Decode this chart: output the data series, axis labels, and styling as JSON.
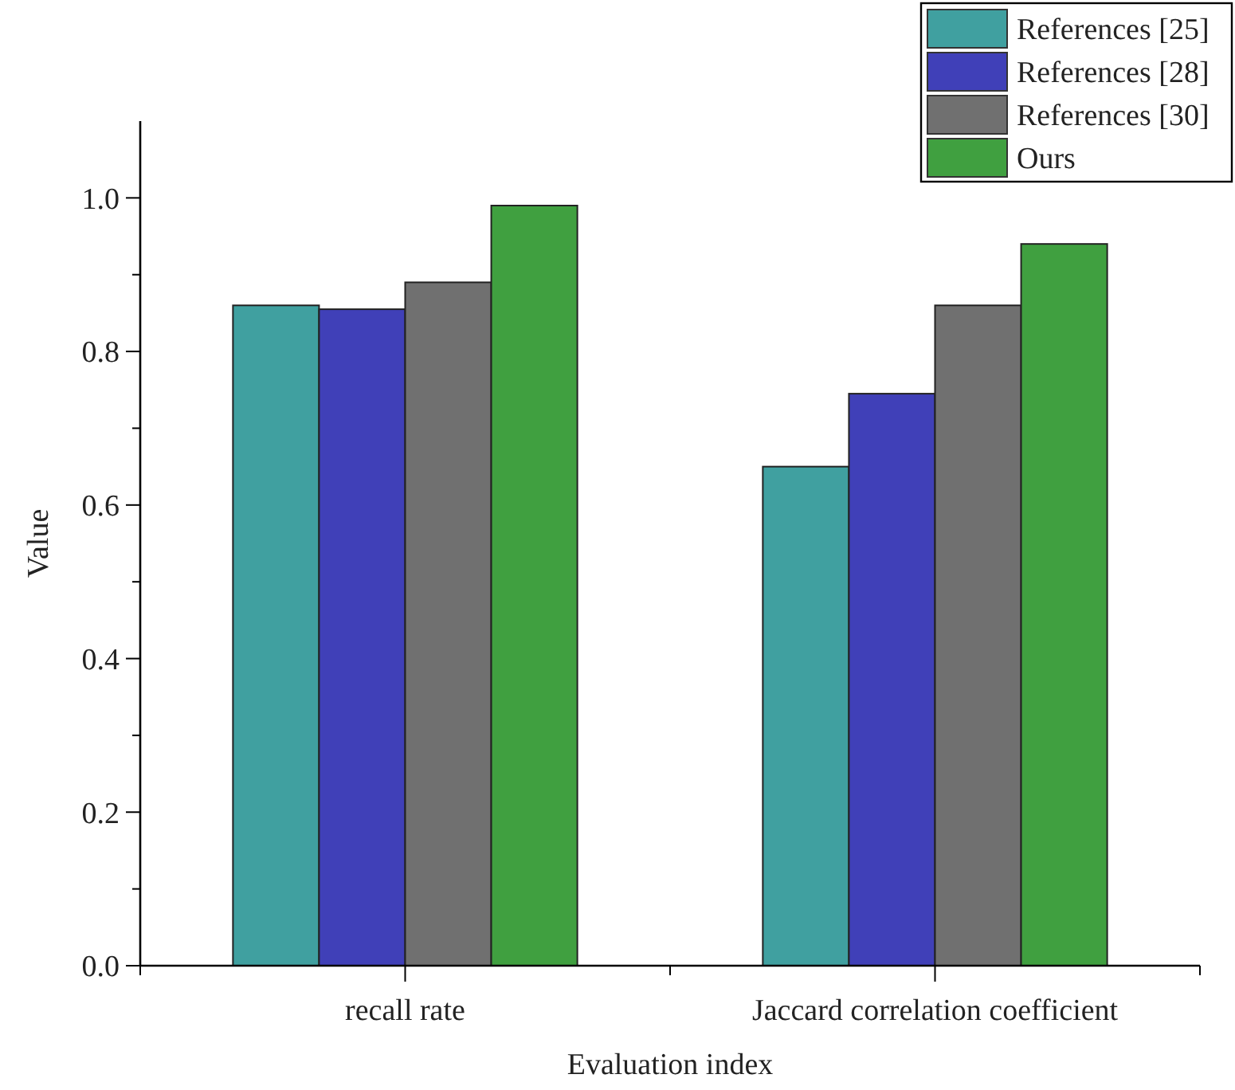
{
  "chart_data": {
    "type": "bar",
    "xlabel": "Evaluation index",
    "ylabel": "Value",
    "categories": [
      "recall rate",
      "Jaccard correlation coefficient"
    ],
    "series": [
      {
        "name": "References [25]",
        "color": "#40a0a0",
        "values": [
          0.86,
          0.65
        ]
      },
      {
        "name": "References [28]",
        "color": "#4040b8",
        "values": [
          0.855,
          0.745
        ]
      },
      {
        "name": "References [30]",
        "color": "#707070",
        "values": [
          0.89,
          0.86
        ]
      },
      {
        "name": "Ours",
        "color": "#40a040",
        "values": [
          0.99,
          0.94
        ]
      }
    ],
    "ylim": [
      0,
      1.1
    ],
    "yticks": [
      {
        "value": 0,
        "label": "0.0"
      },
      {
        "value": 0.1,
        "label": null
      },
      {
        "value": 0.2,
        "label": "0.2"
      },
      {
        "value": 0.3,
        "label": null
      },
      {
        "value": 0.4,
        "label": "0.4"
      },
      {
        "value": 0.5,
        "label": null
      },
      {
        "value": 0.6,
        "label": "0.6"
      },
      {
        "value": 0.7,
        "label": null
      },
      {
        "value": 0.8,
        "label": "0.8"
      },
      {
        "value": 0.9,
        "label": null
      },
      {
        "value": 1,
        "label": "1.0"
      }
    ],
    "grid": false,
    "legend": "top right"
  }
}
